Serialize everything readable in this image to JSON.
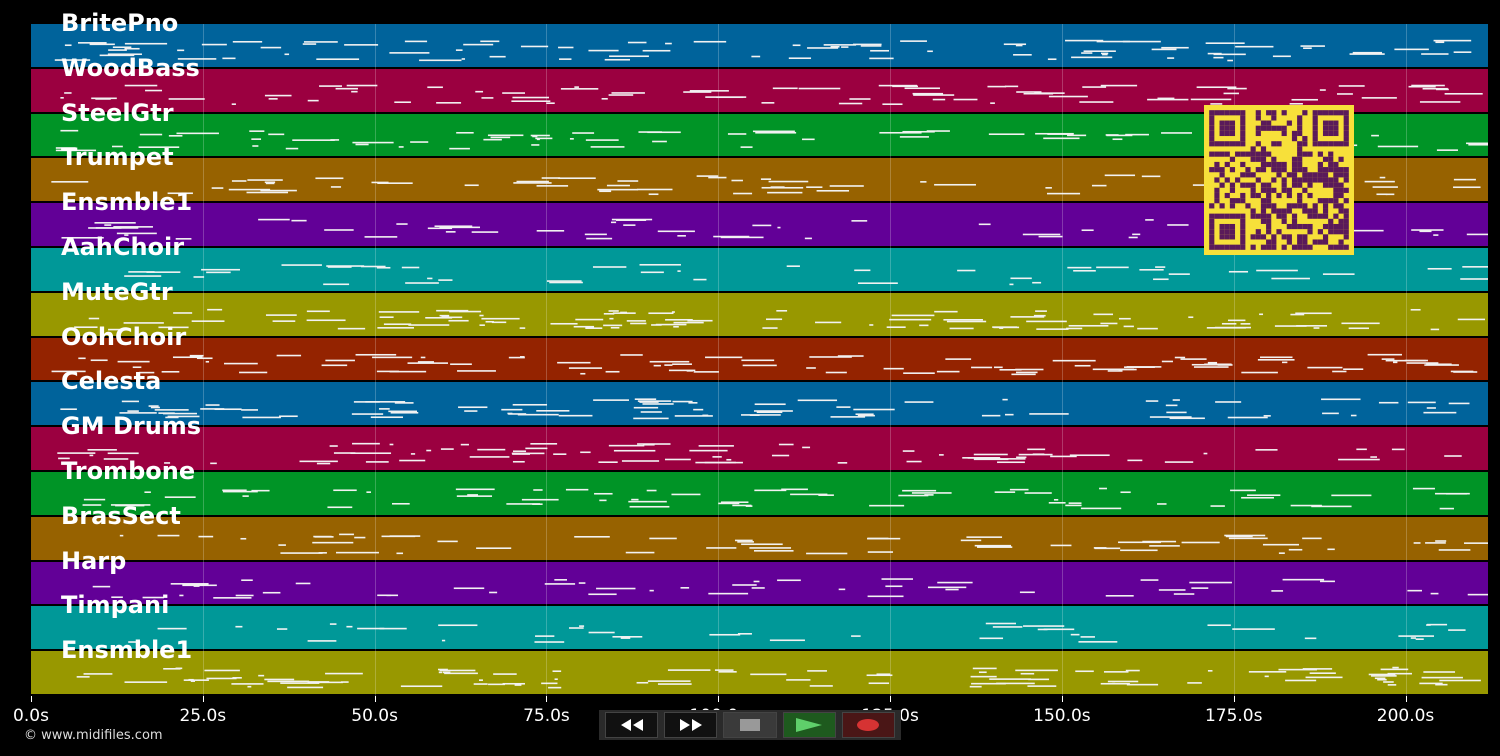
{
  "timeline": {
    "ticks": [
      "0.0s",
      "25.0s",
      "50.0s",
      "75.0s",
      "100.0s",
      "125.0s",
      "150.0s",
      "175.0s",
      "200.0s"
    ]
  },
  "tracks": [
    {
      "name": "BritePno",
      "color": "#00639b"
    },
    {
      "name": "WoodBass",
      "color": "#9b0040"
    },
    {
      "name": "SteelGtr",
      "color": "#009426"
    },
    {
      "name": "Trumpet",
      "color": "#976200"
    },
    {
      "name": "Ensmble1",
      "color": "#620097"
    },
    {
      "name": "AahChoir",
      "color": "#009898"
    },
    {
      "name": "MuteGtr",
      "color": "#989800"
    },
    {
      "name": "OohChoir",
      "color": "#942300"
    },
    {
      "name": "Celesta",
      "color": "#00639b"
    },
    {
      "name": "GM Drums",
      "color": "#9b0040"
    },
    {
      "name": "Trombone",
      "color": "#009426"
    },
    {
      "name": "BrasSect",
      "color": "#976200"
    },
    {
      "name": "Harp",
      "color": "#620097"
    },
    {
      "name": "Timpani",
      "color": "#009898"
    },
    {
      "name": "Ensmble1",
      "color": "#989800"
    }
  ],
  "copyright": "© www.midifiles.com",
  "transport": {
    "rewind_icon": "rewind-icon",
    "forward_icon": "fast-forward-icon",
    "stop_icon": "stop-icon",
    "play_icon": "play-icon",
    "record_icon": "record-icon"
  },
  "qr_color": "#5a1a5a"
}
